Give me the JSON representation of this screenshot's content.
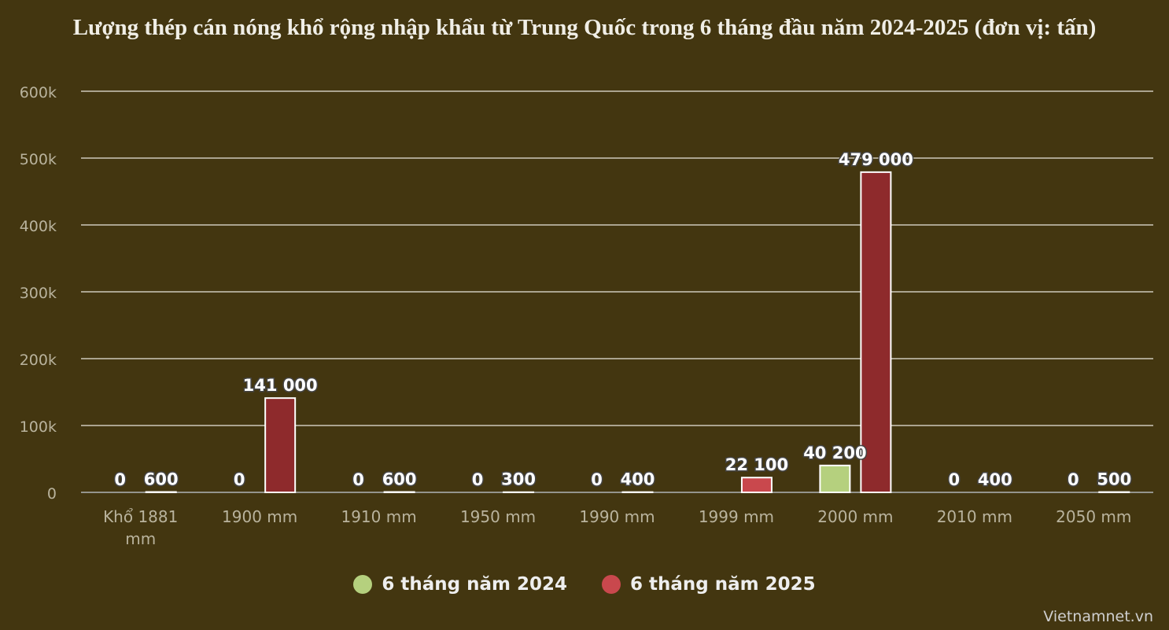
{
  "chart_data": {
    "type": "bar",
    "title": "Lượng thép cán nóng khổ rộng nhập khẩu từ Trung Quốc trong 6 tháng đầu năm 2024-2025 (đơn vị: tấn)",
    "categories": [
      "Khổ 1881 mm",
      "1900 mm",
      "1910 mm",
      "1950 mm",
      "1990 mm",
      "1999 mm",
      "2000 mm",
      "2010 mm",
      "2050 mm"
    ],
    "series": [
      {
        "name": "6 tháng năm 2024",
        "color": "#b5d07e",
        "values": [
          0,
          0,
          0,
          0,
          0,
          null,
          40200,
          0,
          0
        ]
      },
      {
        "name": "6 tháng năm 2025",
        "color": "#c9484d",
        "values": [
          600,
          141000,
          600,
          300,
          400,
          22100,
          479000,
          null,
          500
        ]
      }
    ],
    "data_labels": [
      [
        "0",
        "0",
        "0",
        "0",
        "0",
        "",
        "40 200",
        "0",
        "0"
      ],
      [
        "600",
        "141 000",
        "600",
        "300",
        "400",
        "22 100",
        "479 000",
        "400",
        "500"
      ]
    ],
    "y_ticks": [
      0,
      100000,
      200000,
      300000,
      400000,
      500000,
      600000
    ],
    "y_tick_labels": [
      "0",
      "100k",
      "200k",
      "300k",
      "400k",
      "500k",
      "600k"
    ],
    "ylim": [
      0,
      600000
    ],
    "grid": true,
    "legend_position": "bottom"
  },
  "source": "Vietnamnet.vn"
}
